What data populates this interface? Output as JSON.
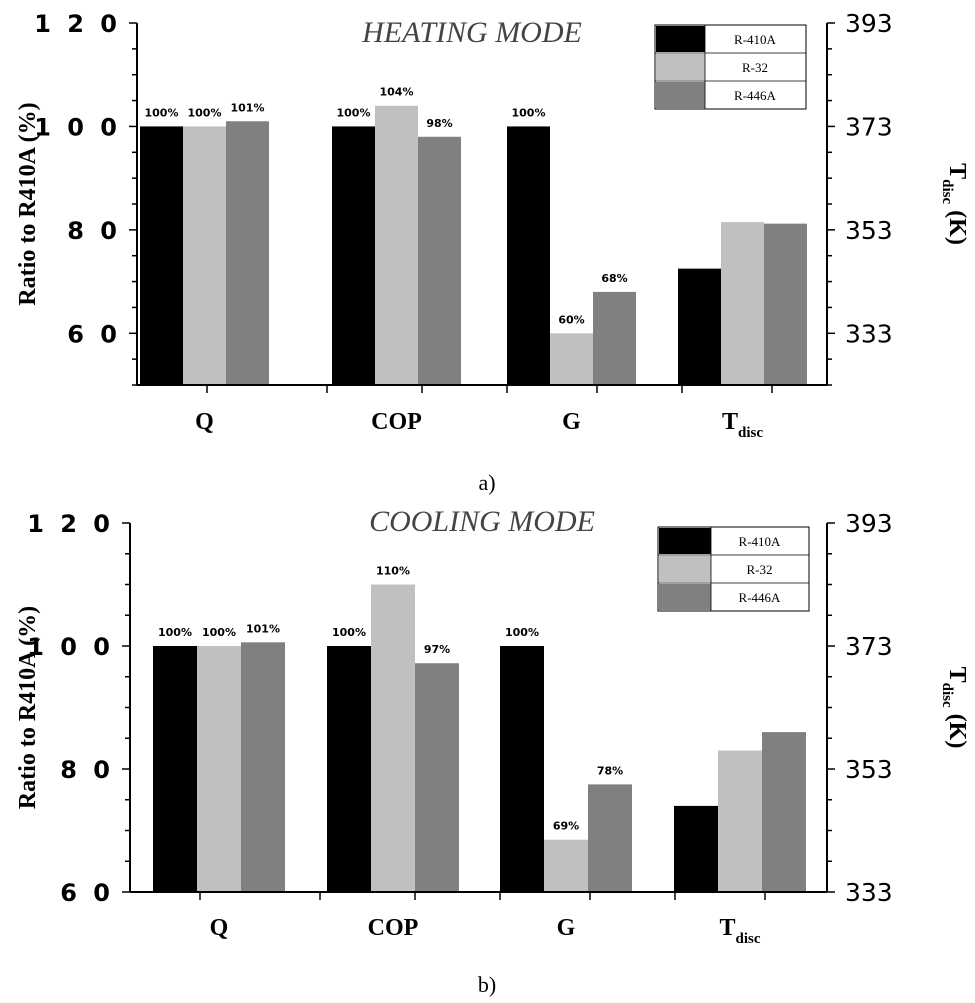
{
  "chart_data": [
    {
      "type": "bar",
      "title": "HEATING MODE",
      "panel_label": "a)",
      "ylabel": "Ratio to R410A (%)",
      "y2label_main": "T",
      "y2label_sub": "disc",
      "y2label_unit": " (K)",
      "ylim": [
        50,
        120
      ],
      "yticks": [
        {
          "value": 60,
          "label": "6 0"
        },
        {
          "value": 80,
          "label": "8 0"
        },
        {
          "value": 100,
          "label": "1 0 0"
        },
        {
          "value": 120,
          "label": "1 2 0"
        }
      ],
      "y2lim": [
        323,
        393
      ],
      "y2ticks": [
        "333",
        "353",
        "373",
        "393"
      ],
      "categories": [
        {
          "main": "Q",
          "sub": ""
        },
        {
          "main": "COP",
          "sub": ""
        },
        {
          "main": "G",
          "sub": ""
        },
        {
          "main": "T",
          "sub": "disc"
        }
      ],
      "legend_position": "top-right",
      "series": [
        {
          "name": "R-410A",
          "color": "#000000",
          "values": [
            100,
            100,
            100,
            72.5
          ],
          "labels": [
            "100%",
            "100%",
            "100%",
            ""
          ]
        },
        {
          "name": "R-32",
          "color": "#c0c0c0",
          "values": [
            100,
            104,
            60,
            81.5
          ],
          "labels": [
            "100%",
            "104%",
            "60%",
            ""
          ]
        },
        {
          "name": "R-446A",
          "color": "#808080",
          "values": [
            101,
            98,
            68,
            81.2
          ],
          "labels": [
            "101%",
            "98%",
            "68%",
            ""
          ]
        }
      ]
    },
    {
      "type": "bar",
      "title": "COOLING MODE",
      "panel_label": "b)",
      "ylabel": "Ratio to R410A (%)",
      "y2label_main": "T",
      "y2label_sub": "disc",
      "y2label_unit": " (K)",
      "ylim": [
        60,
        120
      ],
      "yticks": [
        {
          "value": 60,
          "label": "6 0"
        },
        {
          "value": 80,
          "label": "8 0"
        },
        {
          "value": 100,
          "label": "1 0 0"
        },
        {
          "value": 120,
          "label": "1 2 0"
        }
      ],
      "y2lim": [
        333,
        393
      ],
      "y2ticks": [
        "333",
        "353",
        "373",
        "393"
      ],
      "categories": [
        {
          "main": "Q",
          "sub": ""
        },
        {
          "main": "COP",
          "sub": ""
        },
        {
          "main": "G",
          "sub": ""
        },
        {
          "main": "T",
          "sub": "disc"
        }
      ],
      "legend_position": "top-right",
      "series": [
        {
          "name": "R-410A",
          "color": "#000000",
          "values": [
            100,
            100,
            100,
            74
          ],
          "labels": [
            "100%",
            "100%",
            "100%",
            ""
          ]
        },
        {
          "name": "R-32",
          "color": "#c0c0c0",
          "values": [
            100,
            110,
            68.5,
            83
          ],
          "labels": [
            "100%",
            "110%",
            "69%",
            ""
          ]
        },
        {
          "name": "R-446A",
          "color": "#808080",
          "values": [
            100.6,
            97.2,
            77.5,
            86
          ],
          "labels": [
            "101%",
            "97%",
            "78%",
            ""
          ]
        }
      ]
    }
  ]
}
